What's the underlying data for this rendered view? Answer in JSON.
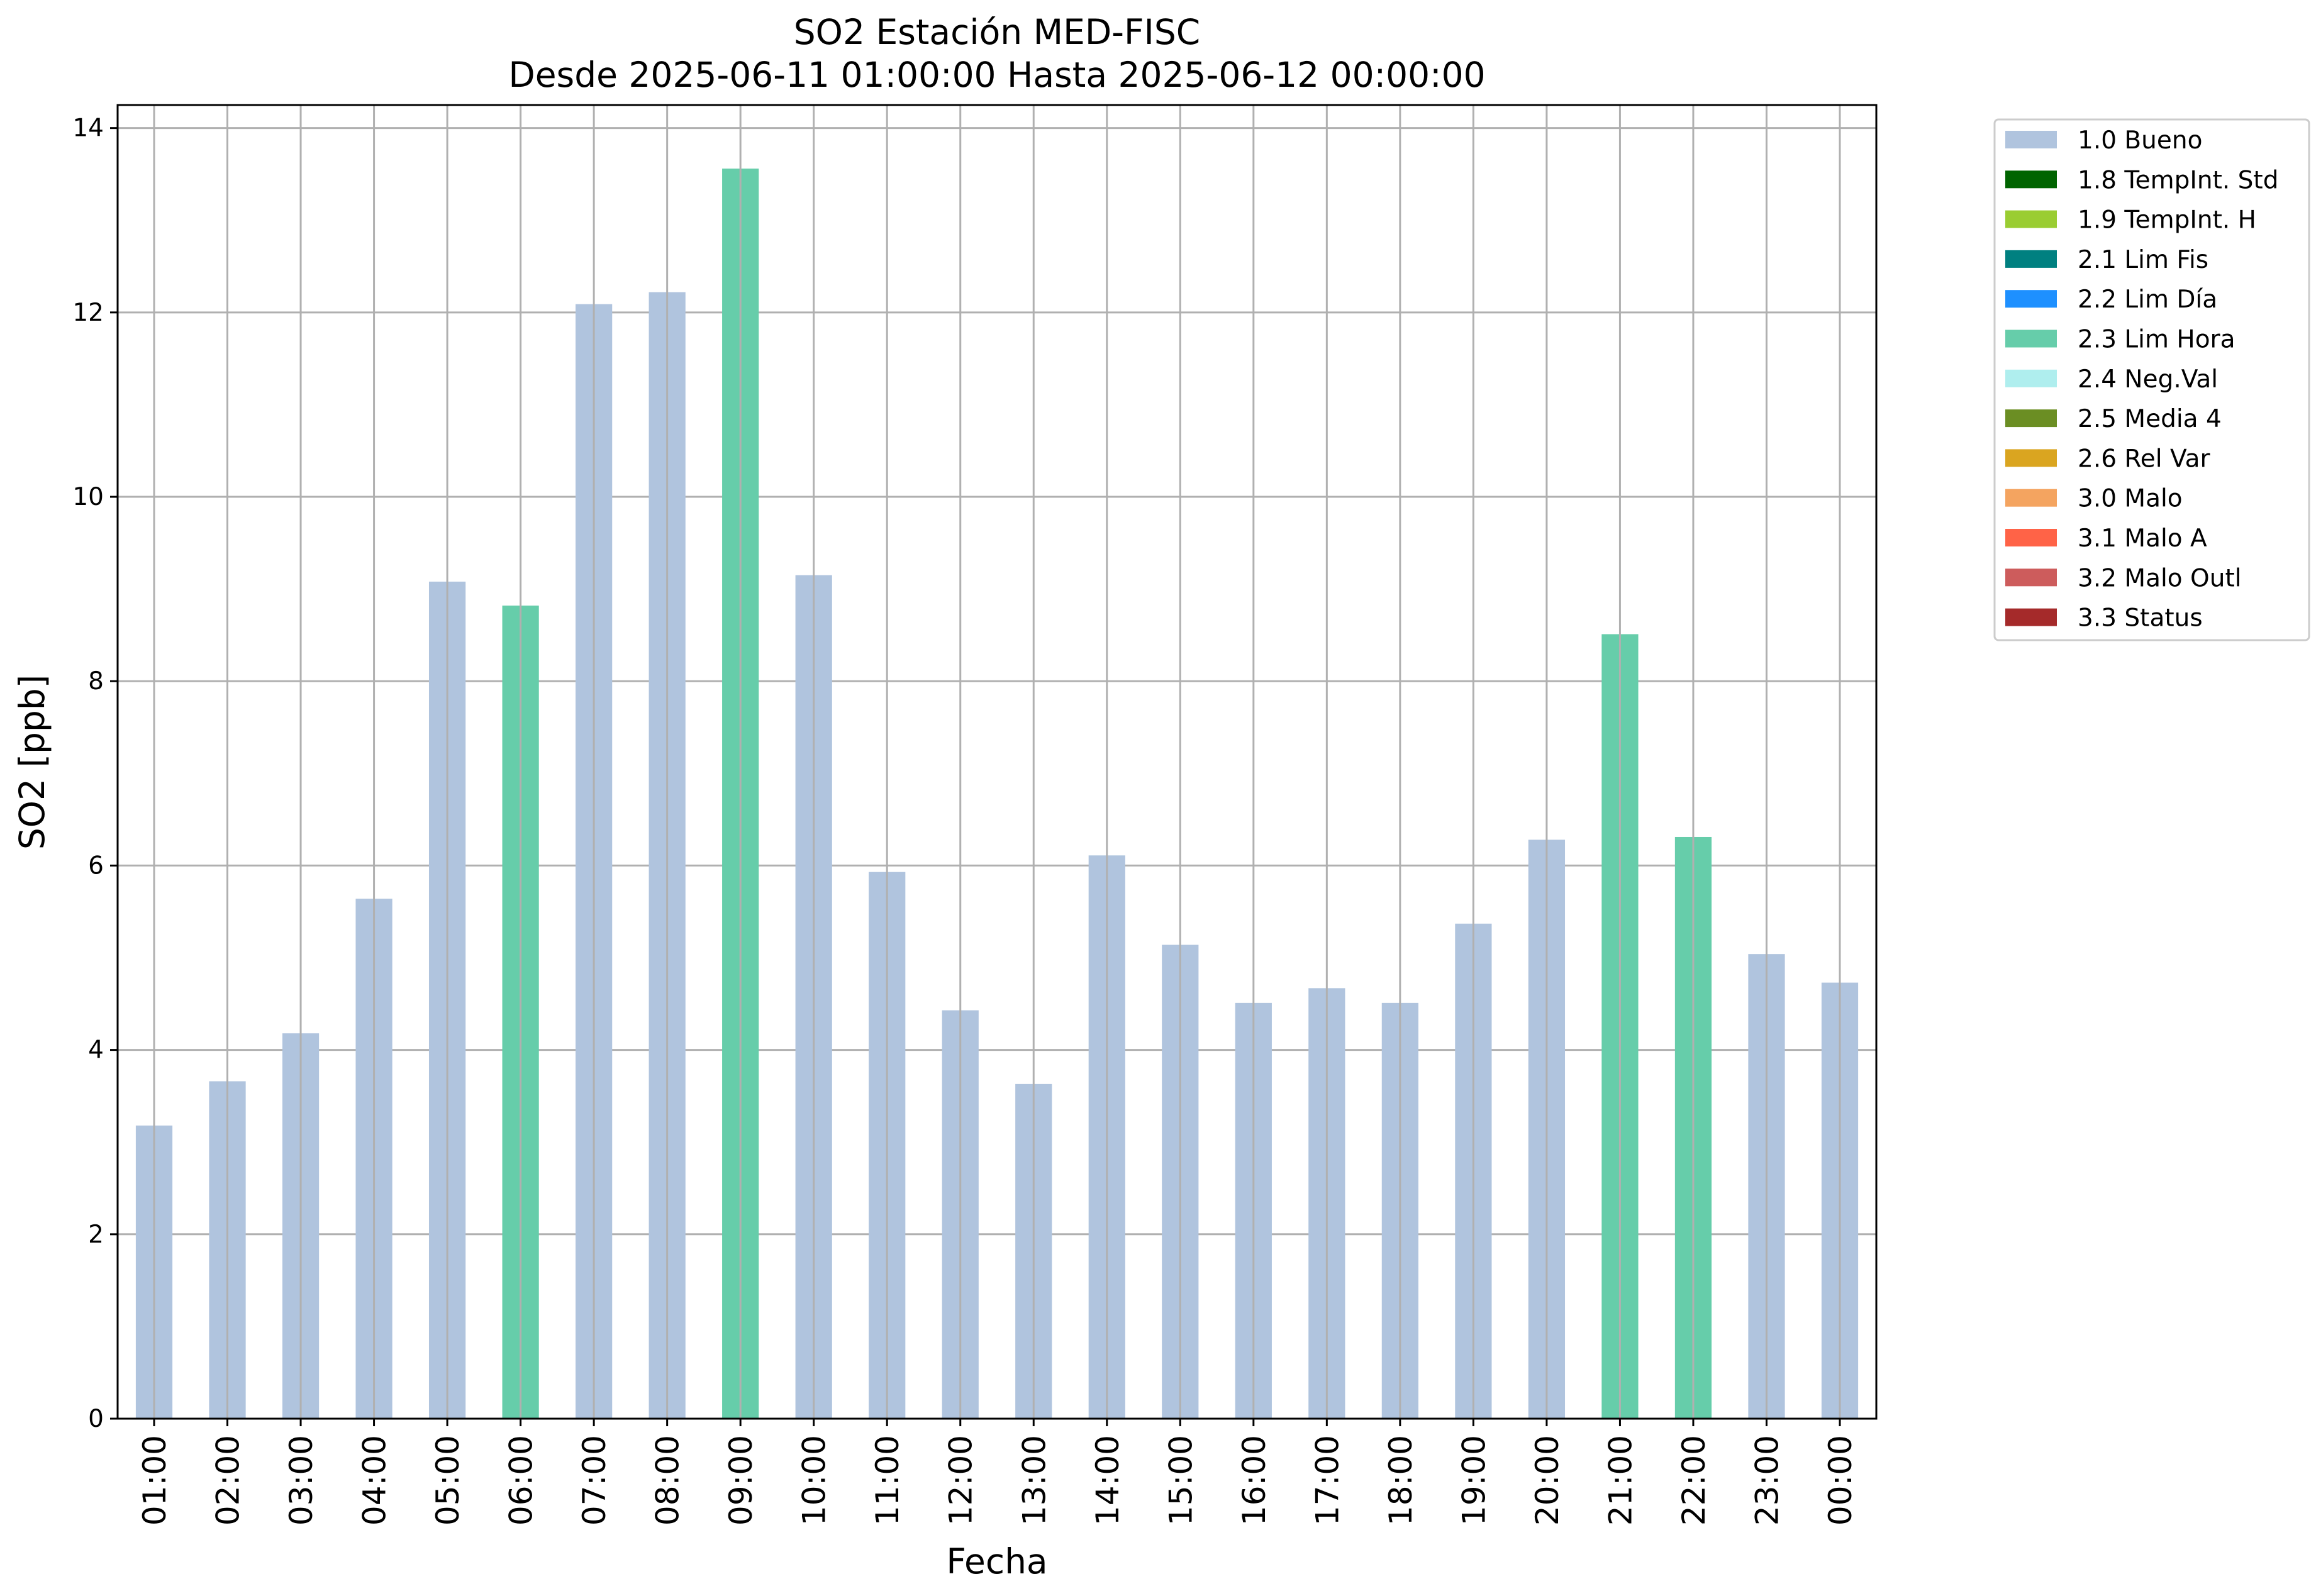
{
  "chart_data": {
    "type": "bar",
    "title": "SO2 Estación MED-FISC",
    "subtitle": "Desde 2025-06-11 01:00:00 Hasta 2025-06-12 00:00:00",
    "xlabel": "Fecha",
    "ylabel": "SO2 [ppb]",
    "ylim": [
      0,
      14.25
    ],
    "yticks": [
      0,
      2,
      4,
      6,
      8,
      10,
      12,
      14
    ],
    "grid": true,
    "legend_position": "outside-right-top",
    "categories": [
      "01:00",
      "02:00",
      "03:00",
      "04:00",
      "05:00",
      "06:00",
      "07:00",
      "08:00",
      "09:00",
      "10:00",
      "11:00",
      "12:00",
      "13:00",
      "14:00",
      "15:00",
      "16:00",
      "17:00",
      "18:00",
      "19:00",
      "20:00",
      "21:00",
      "22:00",
      "23:00",
      "00:00"
    ],
    "values": [
      3.18,
      3.66,
      4.18,
      5.64,
      9.08,
      8.82,
      12.09,
      12.22,
      13.56,
      9.15,
      5.93,
      4.43,
      3.63,
      6.11,
      5.14,
      4.51,
      4.67,
      4.51,
      5.37,
      6.28,
      8.51,
      6.31,
      5.04,
      4.73
    ],
    "flags": [
      "1.0 Bueno",
      "1.0 Bueno",
      "1.0 Bueno",
      "1.0 Bueno",
      "1.0 Bueno",
      "2.3 Lim Hora",
      "1.0 Bueno",
      "1.0 Bueno",
      "2.3 Lim Hora",
      "1.0 Bueno",
      "1.0 Bueno",
      "1.0 Bueno",
      "1.0 Bueno",
      "1.0 Bueno",
      "1.0 Bueno",
      "1.0 Bueno",
      "1.0 Bueno",
      "1.0 Bueno",
      "1.0 Bueno",
      "1.0 Bueno",
      "2.3 Lim Hora",
      "2.3 Lim Hora",
      "1.0 Bueno",
      "1.0 Bueno"
    ],
    "legend": [
      {
        "name": "1.0 Bueno",
        "color": "#b0c4de"
      },
      {
        "name": "1.8 TempInt. Std",
        "color": "#006400"
      },
      {
        "name": "1.9 TempInt. H",
        "color": "#9acd32"
      },
      {
        "name": "2.1 Lim Fis",
        "color": "#008080"
      },
      {
        "name": "2.2 Lim Día",
        "color": "#1e90ff"
      },
      {
        "name": "2.3 Lim Hora",
        "color": "#66cdaa"
      },
      {
        "name": "2.4 Neg.Val",
        "color": "#afeeee"
      },
      {
        "name": "2.5 Media 4",
        "color": "#6b8e23"
      },
      {
        "name": "2.6 Rel Var",
        "color": "#daa520"
      },
      {
        "name": "3.0 Malo",
        "color": "#f4a460"
      },
      {
        "name": "3.1 Malo A",
        "color": "#ff6347"
      },
      {
        "name": "3.2 Malo Outl",
        "color": "#cd5c5c"
      },
      {
        "name": "3.3 Status",
        "color": "#a52a2a"
      }
    ],
    "colors": {
      "grid": "#b0b0b0",
      "axis": "#000000"
    }
  }
}
